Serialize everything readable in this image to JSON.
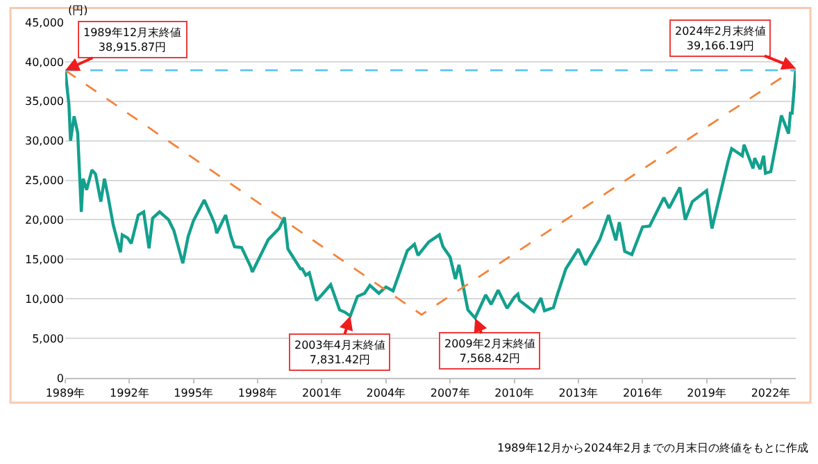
{
  "chart_data": {
    "type": "line",
    "ylabel": "(円)",
    "x": [
      "1989-12",
      "1990-02",
      "1990-03",
      "1990-05",
      "1990-07",
      "1990-09",
      "1990-10",
      "1990-12",
      "1991-03",
      "1991-05",
      "1991-08",
      "1991-10",
      "1991-12",
      "1992-03",
      "1992-07",
      "1992-08",
      "1992-11",
      "1993-01",
      "1993-05",
      "1993-08",
      "1993-11",
      "1994-01",
      "1994-05",
      "1994-10",
      "1995-01",
      "1995-06",
      "1995-09",
      "1995-12",
      "1996-06",
      "1996-10",
      "1996-12",
      "1997-01",
      "1997-06",
      "1997-09",
      "1997-11",
      "1998-03",
      "1998-08",
      "1998-09",
      "1999-06",
      "1999-12",
      "2000-03",
      "2000-05",
      "2000-12",
      "2001-01",
      "2001-03",
      "2001-05",
      "2001-09",
      "2001-12",
      "2002-05",
      "2002-10",
      "2003-01",
      "2003-04",
      "2003-08",
      "2003-12",
      "2004-03",
      "2004-08",
      "2004-12",
      "2005-04",
      "2005-12",
      "2006-04",
      "2006-06",
      "2006-12",
      "2007-06",
      "2007-08",
      "2007-12",
      "2008-03",
      "2008-05",
      "2008-10",
      "2009-02",
      "2009-08",
      "2009-11",
      "2010-03",
      "2010-08",
      "2010-12",
      "2011-02",
      "2011-03",
      "2011-11",
      "2012-03",
      "2012-05",
      "2012-10",
      "2012-12",
      "2013-05",
      "2013-12",
      "2014-04",
      "2014-12",
      "2015-05",
      "2015-09",
      "2015-11",
      "2016-02",
      "2016-06",
      "2016-12",
      "2017-04",
      "2017-12",
      "2018-03",
      "2018-09",
      "2018-12",
      "2019-04",
      "2019-12",
      "2020-03",
      "2020-12",
      "2021-02",
      "2021-08",
      "2021-09",
      "2022-02",
      "2022-03",
      "2022-06",
      "2022-08",
      "2022-09",
      "2022-12",
      "2023-06",
      "2023-10",
      "2023-11",
      "2023-12",
      "2024-01",
      "2024-02"
    ],
    "series": [
      {
        "color": "#13a08e",
        "line_style": "solid",
        "values": [
          38915.87,
          34600,
          30000,
          33100,
          31000,
          21000,
          25200,
          23800,
          26300,
          25800,
          22300,
          25200,
          23000,
          19300,
          15900,
          18100,
          17700,
          17000,
          20600,
          21000,
          16400,
          20200,
          21000,
          20000,
          18600,
          14500,
          17900,
          19900,
          22500,
          20500,
          19400,
          18300,
          20600,
          17900,
          16600,
          16500,
          14100,
          13400,
          17500,
          18900,
          20300,
          16300,
          13800,
          13800,
          13000,
          13300,
          9800,
          10500,
          11800,
          8600,
          8300,
          7831.42,
          10300,
          10700,
          11700,
          10700,
          11500,
          11000,
          16100,
          16900,
          15500,
          17200,
          18100,
          16600,
          15300,
          12500,
          14300,
          8600,
          7568.42,
          10500,
          9300,
          11100,
          8800,
          10200,
          10600,
          9800,
          8400,
          10100,
          8500,
          8900,
          10400,
          13800,
          16300,
          14300,
          17500,
          20600,
          17400,
          19700,
          16000,
          15600,
          19100,
          19200,
          22800,
          21500,
          24100,
          20000,
          22300,
          23700,
          18900,
          27400,
          29000,
          28100,
          29500,
          26500,
          27800,
          26400,
          28100,
          25900,
          26100,
          33200,
          30900,
          33500,
          33500,
          36300,
          39166.19
        ]
      },
      {
        "color": "#f4843c",
        "line_style": "dashed",
        "x": [
          "1989-12",
          "2006-08",
          "2024-02"
        ],
        "values": [
          38915.87,
          8000,
          39166.19
        ]
      }
    ],
    "ref_lines": [
      {
        "axis": "y",
        "value": 38915.87,
        "color": "#5bc4ec",
        "line_style": "dashed"
      }
    ],
    "xlim": [
      "1989-12",
      "2024-02"
    ],
    "xticks": [
      {
        "value": "1989-12",
        "label": "1989年"
      },
      {
        "value": "1992-12",
        "label": "1992年"
      },
      {
        "value": "1995-12",
        "label": "1995年"
      },
      {
        "value": "1998-12",
        "label": "1998年"
      },
      {
        "value": "2001-12",
        "label": "2001年"
      },
      {
        "value": "2004-12",
        "label": "2004年"
      },
      {
        "value": "2007-12",
        "label": "2007年"
      },
      {
        "value": "2010-12",
        "label": "2010年"
      },
      {
        "value": "2013-12",
        "label": "2013年"
      },
      {
        "value": "2016-12",
        "label": "2016年"
      },
      {
        "value": "2019-12",
        "label": "2019年"
      },
      {
        "value": "2022-12",
        "label": "2022年"
      }
    ],
    "ylim": [
      0,
      45000
    ],
    "yticks": [
      {
        "value": 0,
        "label": "0"
      },
      {
        "value": 5000,
        "label": "5,000"
      },
      {
        "value": 10000,
        "label": "10,000"
      },
      {
        "value": 15000,
        "label": "15,000"
      },
      {
        "value": 20000,
        "label": "20,000"
      },
      {
        "value": 25000,
        "label": "25,000"
      },
      {
        "value": 30000,
        "label": "30,000"
      },
      {
        "value": 35000,
        "label": "35,000"
      },
      {
        "value": 40000,
        "label": "40,000"
      },
      {
        "value": 45000,
        "label": "45,000"
      }
    ],
    "grid": "y",
    "annotations": [
      {
        "text": "1989年12月末終値\n38,915.87円",
        "x": "1989-12",
        "y": 38915.87
      },
      {
        "text": "2003年4月末終値\n7,831.42円",
        "x": "2003-04",
        "y": 7831.42
      },
      {
        "text": "2009年2月末終値\n7,568.42円",
        "x": "2009-02",
        "y": 7568.42
      },
      {
        "text": "2024年2月末終値\n39,166.19円",
        "x": "2024-02",
        "y": 39166.19
      },
      "1989年12月から2024年2月までの月末日の終値をもとに作成"
    ]
  }
}
